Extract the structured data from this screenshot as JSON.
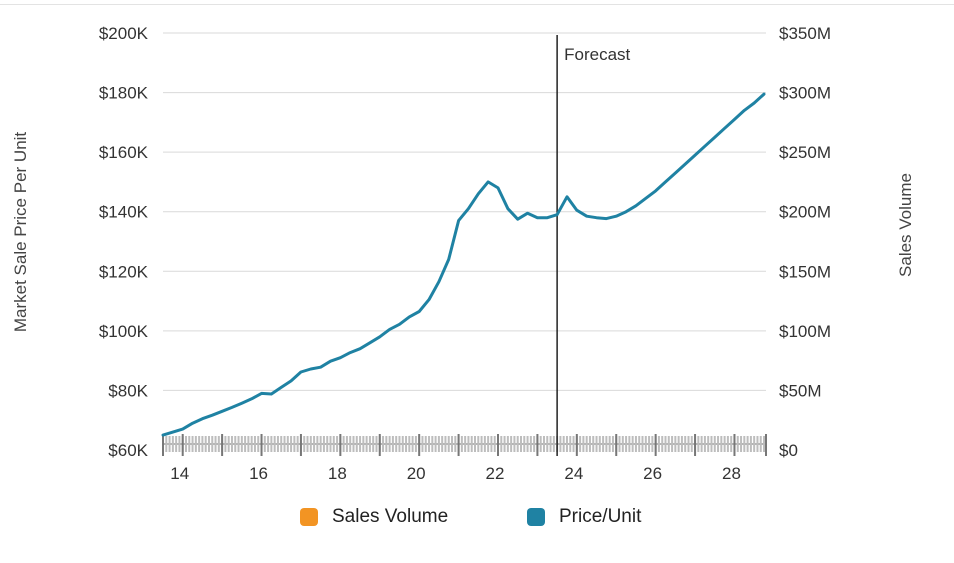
{
  "chart_data": {
    "type": "line",
    "ylabel": "Market Sale Price Per Unit",
    "y2label": "Sales Volume",
    "ylim": [
      60000,
      200000
    ],
    "y2lim": [
      0,
      350000000
    ],
    "yticks": [
      "$60K",
      "$80K",
      "$100K",
      "$120K",
      "$140K",
      "$160K",
      "$180K",
      "$200K"
    ],
    "y2ticks": [
      "$0",
      "$50M",
      "$100M",
      "$150M",
      "$200M",
      "$250M",
      "$300M",
      "$350M"
    ],
    "xlim": [
      13.5,
      28.8
    ],
    "xticks": [
      "14",
      "16",
      "18",
      "20",
      "22",
      "24",
      "26",
      "28"
    ],
    "grid": true,
    "legend_position": "bottom",
    "annotation": {
      "label": "Forecast",
      "x": 23.5
    },
    "series": [
      {
        "name": "Sales Volume",
        "color": "#f29423",
        "values": []
      },
      {
        "name": "Price/Unit",
        "color": "#1f82a3",
        "x": [
          13.5,
          13.75,
          14.0,
          14.25,
          14.5,
          14.75,
          15.0,
          15.25,
          15.5,
          15.75,
          16.0,
          16.25,
          16.5,
          16.75,
          17.0,
          17.25,
          17.5,
          17.75,
          18.0,
          18.25,
          18.5,
          18.75,
          19.0,
          19.25,
          19.5,
          19.75,
          20.0,
          20.25,
          20.5,
          20.75,
          21.0,
          21.25,
          21.5,
          21.75,
          22.0,
          22.25,
          22.5,
          22.75,
          23.0,
          23.25,
          23.5,
          23.75,
          24.0,
          24.25,
          24.5,
          24.75,
          25.0,
          25.25,
          25.5,
          25.75,
          26.0,
          26.25,
          26.5,
          26.75,
          27.0,
          27.25,
          27.5,
          27.75,
          28.0,
          28.25,
          28.5,
          28.75
        ],
        "values": [
          65000,
          66000,
          67000,
          69000,
          70500,
          71700,
          73000,
          74300,
          75700,
          77200,
          79000,
          78800,
          81000,
          83200,
          86200,
          87200,
          87800,
          89800,
          91000,
          92700,
          94000,
          96000,
          98000,
          100500,
          102200,
          104700,
          106500,
          110500,
          116500,
          124000,
          137000,
          141000,
          146000,
          150000,
          148000,
          141000,
          137500,
          139500,
          138000,
          138000,
          139000,
          145000,
          140500,
          138500,
          138000,
          137700,
          138500,
          140000,
          142000,
          144500,
          147000,
          150000,
          153000,
          156000,
          159000,
          162000,
          165000,
          168000,
          171000,
          174000,
          176500,
          179500
        ]
      }
    ]
  }
}
